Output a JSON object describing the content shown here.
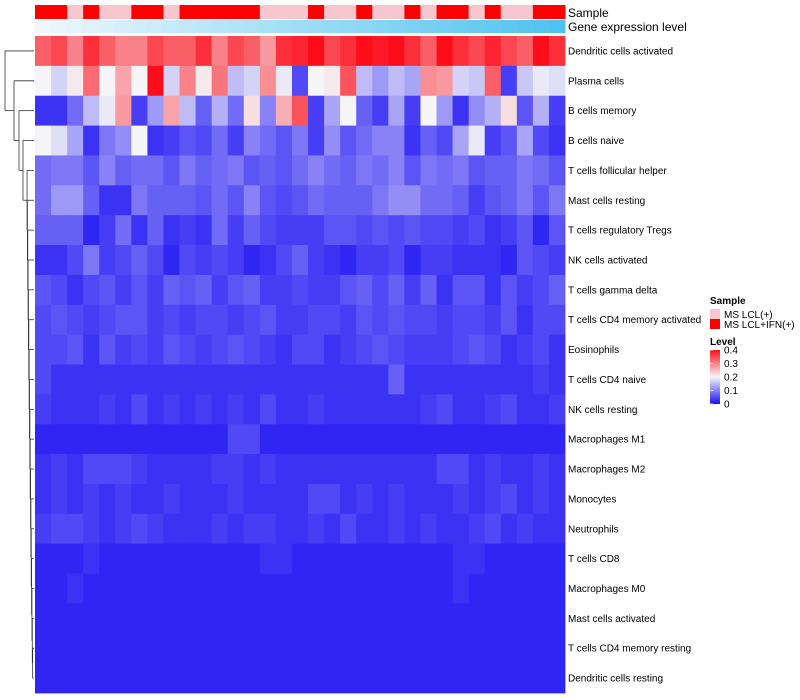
{
  "chart_data": {
    "type": "heatmap",
    "title": "",
    "annotations": {
      "sample_label": "Sample",
      "expression_label": "Gene expression level",
      "sample_groups": [
        1,
        1,
        0,
        1,
        0,
        0,
        1,
        1,
        0,
        1,
        1,
        1,
        1,
        1,
        0,
        0,
        0,
        1,
        0,
        0,
        1,
        0,
        0,
        1,
        0,
        1,
        1,
        0,
        1,
        0,
        0,
        1,
        1
      ],
      "expression_start_color": "#eef7fc",
      "expression_end_color": "#4fc3ef"
    },
    "rows": [
      "Dendritic cells activated",
      "Plasma cells",
      "B cells memory",
      "B cells naive",
      "T cells follicular helper",
      "Mast cells resting",
      "T cells regulatory  Tregs",
      "NK cells activated",
      "T cells gamma delta",
      "T cells CD4 memory activated",
      "Eosinophils",
      "T cells CD4 naive",
      "NK cells resting",
      "Macrophages M1",
      "Macrophages M2",
      "Monocytes",
      "Neutrophils",
      "T cells CD8",
      "Macrophages M0",
      "Mast cells activated",
      "T cells CD4 memory resting",
      "Dendritic cells resting"
    ],
    "n_columns": 33,
    "values": [
      [
        0.33,
        0.35,
        0.3,
        0.37,
        0.33,
        0.3,
        0.3,
        0.35,
        0.33,
        0.33,
        0.37,
        0.3,
        0.35,
        0.33,
        0.28,
        0.37,
        0.38,
        0.4,
        0.35,
        0.37,
        0.4,
        0.39,
        0.4,
        0.37,
        0.33,
        0.4,
        0.37,
        0.35,
        0.38,
        0.35,
        0.33,
        0.4,
        0.37
      ],
      [
        0.2,
        0.17,
        0.21,
        0.32,
        0.2,
        0.27,
        0.2,
        0.4,
        0.17,
        0.3,
        0.21,
        0.31,
        0.15,
        0.17,
        0.29,
        0.19,
        0.05,
        0.2,
        0.21,
        0.34,
        0.15,
        0.12,
        0.15,
        0.13,
        0.29,
        0.28,
        0.17,
        0.16,
        0.33,
        0.04,
        0.16,
        0.19,
        0.18
      ],
      [
        0.03,
        0.03,
        0.08,
        0.15,
        0.19,
        0.28,
        0.04,
        0.12,
        0.27,
        0.15,
        0.07,
        0.14,
        0.08,
        0.22,
        0.1,
        0.26,
        0.34,
        0.04,
        0.13,
        0.2,
        0.07,
        0.04,
        0.13,
        0.04,
        0.2,
        0.12,
        0.03,
        0.11,
        0.14,
        0.22,
        0.06,
        0.14,
        0.04
      ],
      [
        0.2,
        0.18,
        0.13,
        0.03,
        0.09,
        0.11,
        0.2,
        0.03,
        0.04,
        0.06,
        0.05,
        0.08,
        0.04,
        0.1,
        0.08,
        0.06,
        0.09,
        0.04,
        0.11,
        0.06,
        0.08,
        0.1,
        0.1,
        0.03,
        0.07,
        0.05,
        0.13,
        0.19,
        0.04,
        0.06,
        0.13,
        0.05,
        0.03
      ],
      [
        0.08,
        0.09,
        0.09,
        0.06,
        0.1,
        0.07,
        0.08,
        0.08,
        0.06,
        0.09,
        0.07,
        0.08,
        0.09,
        0.06,
        0.07,
        0.06,
        0.08,
        0.1,
        0.08,
        0.07,
        0.09,
        0.08,
        0.1,
        0.06,
        0.09,
        0.08,
        0.09,
        0.06,
        0.07,
        0.07,
        0.09,
        0.08,
        0.06
      ],
      [
        0.08,
        0.12,
        0.12,
        0.07,
        0.03,
        0.03,
        0.09,
        0.07,
        0.07,
        0.07,
        0.06,
        0.08,
        0.06,
        0.1,
        0.06,
        0.05,
        0.06,
        0.08,
        0.07,
        0.07,
        0.07,
        0.09,
        0.11,
        0.11,
        0.08,
        0.08,
        0.07,
        0.04,
        0.06,
        0.07,
        0.09,
        0.06,
        0.09
      ],
      [
        0.07,
        0.07,
        0.07,
        0.02,
        0.04,
        0.08,
        0.03,
        0.07,
        0.03,
        0.04,
        0.03,
        0.08,
        0.04,
        0.07,
        0.05,
        0.04,
        0.04,
        0.04,
        0.06,
        0.06,
        0.05,
        0.06,
        0.05,
        0.06,
        0.05,
        0.05,
        0.04,
        0.05,
        0.03,
        0.04,
        0.06,
        0.02,
        0.06
      ],
      [
        0.03,
        0.03,
        0.05,
        0.09,
        0.04,
        0.05,
        0.07,
        0.05,
        0.02,
        0.05,
        0.04,
        0.05,
        0.04,
        0.02,
        0.03,
        0.05,
        0.07,
        0.04,
        0.03,
        0.02,
        0.04,
        0.04,
        0.05,
        0.02,
        0.04,
        0.04,
        0.03,
        0.03,
        0.03,
        0.02,
        0.06,
        0.05,
        0.04
      ],
      [
        0.06,
        0.05,
        0.03,
        0.05,
        0.06,
        0.04,
        0.06,
        0.04,
        0.07,
        0.06,
        0.07,
        0.04,
        0.06,
        0.07,
        0.04,
        0.04,
        0.05,
        0.04,
        0.04,
        0.06,
        0.07,
        0.05,
        0.07,
        0.04,
        0.07,
        0.03,
        0.06,
        0.06,
        0.03,
        0.06,
        0.04,
        0.05,
        0.07
      ],
      [
        0.05,
        0.06,
        0.05,
        0.04,
        0.05,
        0.06,
        0.06,
        0.04,
        0.05,
        0.04,
        0.05,
        0.05,
        0.04,
        0.05,
        0.06,
        0.04,
        0.04,
        0.05,
        0.05,
        0.04,
        0.06,
        0.05,
        0.06,
        0.05,
        0.05,
        0.04,
        0.05,
        0.05,
        0.04,
        0.06,
        0.03,
        0.05,
        0.05
      ],
      [
        0.05,
        0.05,
        0.06,
        0.03,
        0.06,
        0.04,
        0.05,
        0.04,
        0.06,
        0.05,
        0.04,
        0.05,
        0.06,
        0.05,
        0.04,
        0.03,
        0.05,
        0.05,
        0.03,
        0.04,
        0.05,
        0.06,
        0.05,
        0.04,
        0.04,
        0.04,
        0.05,
        0.06,
        0.05,
        0.03,
        0.04,
        0.05,
        0.03
      ],
      [
        0.05,
        0.03,
        0.03,
        0.03,
        0.03,
        0.03,
        0.03,
        0.03,
        0.03,
        0.03,
        0.03,
        0.03,
        0.03,
        0.03,
        0.03,
        0.03,
        0.03,
        0.03,
        0.03,
        0.03,
        0.03,
        0.03,
        0.07,
        0.03,
        0.03,
        0.03,
        0.03,
        0.03,
        0.03,
        0.03,
        0.03,
        0.04,
        0.03
      ],
      [
        0.04,
        0.03,
        0.03,
        0.03,
        0.04,
        0.03,
        0.05,
        0.03,
        0.04,
        0.03,
        0.04,
        0.03,
        0.04,
        0.03,
        0.05,
        0.03,
        0.03,
        0.04,
        0.03,
        0.03,
        0.03,
        0.03,
        0.03,
        0.03,
        0.04,
        0.05,
        0.03,
        0.03,
        0.04,
        0.05,
        0.03,
        0.03,
        0.04
      ],
      [
        0.02,
        0.02,
        0.02,
        0.02,
        0.02,
        0.02,
        0.02,
        0.02,
        0.02,
        0.02,
        0.02,
        0.02,
        0.05,
        0.05,
        0.02,
        0.02,
        0.02,
        0.02,
        0.02,
        0.02,
        0.02,
        0.02,
        0.02,
        0.02,
        0.02,
        0.02,
        0.02,
        0.02,
        0.02,
        0.02,
        0.02,
        0.02,
        0.02
      ],
      [
        0.03,
        0.04,
        0.03,
        0.05,
        0.05,
        0.05,
        0.04,
        0.03,
        0.03,
        0.03,
        0.03,
        0.04,
        0.04,
        0.03,
        0.04,
        0.03,
        0.03,
        0.03,
        0.03,
        0.03,
        0.03,
        0.03,
        0.03,
        0.03,
        0.03,
        0.05,
        0.05,
        0.03,
        0.04,
        0.03,
        0.03,
        0.04,
        0.03
      ],
      [
        0.03,
        0.04,
        0.03,
        0.04,
        0.03,
        0.04,
        0.03,
        0.03,
        0.04,
        0.03,
        0.03,
        0.03,
        0.04,
        0.03,
        0.03,
        0.03,
        0.03,
        0.05,
        0.05,
        0.03,
        0.04,
        0.03,
        0.04,
        0.03,
        0.03,
        0.03,
        0.04,
        0.03,
        0.04,
        0.05,
        0.03,
        0.04,
        0.03
      ],
      [
        0.04,
        0.05,
        0.05,
        0.04,
        0.03,
        0.04,
        0.05,
        0.04,
        0.03,
        0.03,
        0.03,
        0.04,
        0.03,
        0.04,
        0.04,
        0.03,
        0.03,
        0.04,
        0.03,
        0.05,
        0.03,
        0.03,
        0.04,
        0.03,
        0.04,
        0.03,
        0.03,
        0.04,
        0.05,
        0.03,
        0.04,
        0.03,
        0.03
      ],
      [
        0.02,
        0.02,
        0.02,
        0.03,
        0.02,
        0.02,
        0.02,
        0.02,
        0.02,
        0.02,
        0.02,
        0.02,
        0.02,
        0.02,
        0.03,
        0.03,
        0.02,
        0.02,
        0.02,
        0.02,
        0.02,
        0.02,
        0.02,
        0.02,
        0.02,
        0.02,
        0.03,
        0.03,
        0.02,
        0.02,
        0.02,
        0.02,
        0.02
      ],
      [
        0.02,
        0.02,
        0.03,
        0.02,
        0.02,
        0.02,
        0.02,
        0.02,
        0.02,
        0.02,
        0.02,
        0.02,
        0.02,
        0.02,
        0.02,
        0.02,
        0.02,
        0.02,
        0.02,
        0.02,
        0.02,
        0.02,
        0.02,
        0.02,
        0.02,
        0.02,
        0.03,
        0.02,
        0.02,
        0.02,
        0.02,
        0.02,
        0.02
      ],
      [
        0.02,
        0.02,
        0.02,
        0.02,
        0.02,
        0.02,
        0.02,
        0.02,
        0.02,
        0.02,
        0.02,
        0.02,
        0.02,
        0.02,
        0.02,
        0.02,
        0.02,
        0.02,
        0.02,
        0.02,
        0.02,
        0.02,
        0.02,
        0.02,
        0.02,
        0.02,
        0.02,
        0.02,
        0.02,
        0.02,
        0.02,
        0.02,
        0.02
      ],
      [
        0.02,
        0.02,
        0.02,
        0.02,
        0.02,
        0.02,
        0.02,
        0.02,
        0.02,
        0.02,
        0.02,
        0.02,
        0.02,
        0.02,
        0.02,
        0.02,
        0.02,
        0.02,
        0.02,
        0.02,
        0.02,
        0.02,
        0.02,
        0.02,
        0.02,
        0.02,
        0.02,
        0.02,
        0.02,
        0.02,
        0.02,
        0.02,
        0.02
      ],
      [
        0.02,
        0.02,
        0.02,
        0.02,
        0.02,
        0.02,
        0.02,
        0.02,
        0.02,
        0.02,
        0.02,
        0.02,
        0.02,
        0.02,
        0.02,
        0.02,
        0.02,
        0.02,
        0.02,
        0.02,
        0.02,
        0.02,
        0.02,
        0.02,
        0.02,
        0.02,
        0.02,
        0.02,
        0.02,
        0.02,
        0.02,
        0.02,
        0.02
      ]
    ],
    "color_scale": {
      "min": 0,
      "max": 0.4,
      "stops": [
        {
          "value": 0,
          "color": "#1a0ff4"
        },
        {
          "value": 0.2,
          "color": "#f5f5f7"
        },
        {
          "value": 0.4,
          "color": "#fd0d1a"
        }
      ]
    },
    "legend": {
      "sample": {
        "title": "Sample",
        "items": [
          {
            "label": "MS LCL(+)",
            "color": "#f8c6cf"
          },
          {
            "label": "MS LCL+IFN(+)",
            "color": "#ff0000"
          }
        ]
      },
      "level": {
        "title": "Level",
        "ticks": [
          "0.4",
          "0.3",
          "0.2",
          "0.1",
          "0"
        ],
        "tick_values": [
          0.4,
          0.3,
          0.2,
          0.1,
          0
        ]
      },
      "placement": "right"
    },
    "dendrogram": "row clustering tree on left"
  }
}
